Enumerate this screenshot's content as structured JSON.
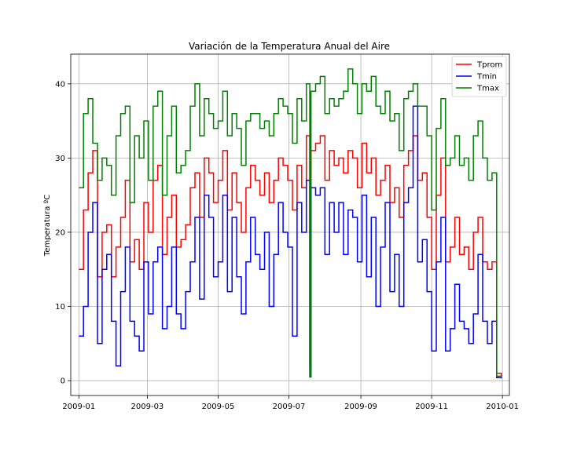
{
  "chart_data": {
    "type": "line",
    "title": "Variación de la Temperatura Anual del Aire",
    "xlabel": "",
    "ylabel": "Temperatura ºC",
    "x_range": [
      "2008-12-25",
      "2010-01-07"
    ],
    "ylim": [
      -2,
      44
    ],
    "grid": true,
    "legend_position": "top-right",
    "x_ticks": [
      "2009-01",
      "2009-03",
      "2009-05",
      "2009-07",
      "2009-09",
      "2009-11",
      "2010-01"
    ],
    "y_ticks": [
      0,
      10,
      20,
      30,
      40
    ],
    "x": [
      "2009-01-01",
      "2009-01-05",
      "2009-01-09",
      "2009-01-13",
      "2009-01-17",
      "2009-01-21",
      "2009-01-25",
      "2009-01-29",
      "2009-02-02",
      "2009-02-06",
      "2009-02-10",
      "2009-02-14",
      "2009-02-18",
      "2009-02-22",
      "2009-02-26",
      "2009-03-02",
      "2009-03-06",
      "2009-03-10",
      "2009-03-14",
      "2009-03-18",
      "2009-03-22",
      "2009-03-26",
      "2009-03-30",
      "2009-04-03",
      "2009-04-07",
      "2009-04-11",
      "2009-04-15",
      "2009-04-19",
      "2009-04-23",
      "2009-04-27",
      "2009-05-01",
      "2009-05-05",
      "2009-05-09",
      "2009-05-13",
      "2009-05-17",
      "2009-05-21",
      "2009-05-25",
      "2009-05-29",
      "2009-06-02",
      "2009-06-06",
      "2009-06-10",
      "2009-06-14",
      "2009-06-18",
      "2009-06-22",
      "2009-06-26",
      "2009-06-30",
      "2009-07-04",
      "2009-07-08",
      "2009-07-12",
      "2009-07-16",
      "2009-07-19",
      "2009-07-20",
      "2009-07-24",
      "2009-07-28",
      "2009-08-01",
      "2009-08-05",
      "2009-08-09",
      "2009-08-13",
      "2009-08-17",
      "2009-08-21",
      "2009-08-25",
      "2009-08-29",
      "2009-09-02",
      "2009-09-06",
      "2009-09-10",
      "2009-09-14",
      "2009-09-18",
      "2009-09-22",
      "2009-09-26",
      "2009-09-30",
      "2009-10-04",
      "2009-10-08",
      "2009-10-12",
      "2009-10-16",
      "2009-10-20",
      "2009-10-24",
      "2009-10-28",
      "2009-11-01",
      "2009-11-05",
      "2009-11-09",
      "2009-11-13",
      "2009-11-17",
      "2009-11-21",
      "2009-11-25",
      "2009-11-29",
      "2009-12-03",
      "2009-12-07",
      "2009-12-11",
      "2009-12-15",
      "2009-12-19",
      "2009-12-23",
      "2009-12-27",
      "2009-12-31"
    ],
    "series": [
      {
        "name": "Tprom",
        "color": "#ff0000",
        "values": [
          15,
          23,
          28,
          31,
          14,
          20,
          21,
          14,
          18,
          22,
          27,
          16,
          19,
          15,
          24,
          20,
          27,
          29,
          17,
          22,
          25,
          18,
          19,
          21,
          26,
          28,
          22,
          30,
          28,
          24,
          27,
          31,
          23,
          28,
          24,
          20,
          26,
          29,
          27,
          25,
          28,
          24,
          27,
          30,
          29,
          27,
          23,
          29,
          26,
          33,
          2,
          31,
          32,
          33,
          27,
          31,
          29,
          30,
          28,
          31,
          30,
          26,
          32,
          28,
          30,
          25,
          27,
          29,
          24,
          26,
          22,
          29,
          31,
          33,
          27,
          28,
          22,
          15,
          25,
          30,
          16,
          18,
          22,
          17,
          18,
          15,
          20,
          22,
          16,
          15,
          16,
          1,
          0.5
        ]
      },
      {
        "name": "Tmin",
        "color": "#0000ff",
        "values": [
          6,
          10,
          20,
          24,
          5,
          15,
          17,
          8,
          2,
          12,
          18,
          8,
          6,
          4,
          16,
          9,
          16,
          18,
          7,
          10,
          18,
          9,
          7,
          12,
          16,
          22,
          11,
          25,
          22,
          14,
          16,
          25,
          12,
          22,
          14,
          9,
          16,
          22,
          17,
          15,
          20,
          10,
          17,
          24,
          20,
          18,
          6,
          24,
          20,
          27,
          0.5,
          26,
          25,
          26,
          17,
          24,
          20,
          24,
          17,
          23,
          22,
          16,
          25,
          14,
          22,
          10,
          18,
          24,
          12,
          17,
          10,
          24,
          26,
          37,
          16,
          19,
          12,
          4,
          16,
          22,
          4,
          7,
          13,
          8,
          7,
          5,
          9,
          17,
          8,
          5,
          8,
          0.4,
          0.3
        ]
      },
      {
        "name": "Tmax",
        "color": "#008000",
        "values": [
          26,
          36,
          38,
          32,
          27,
          30,
          29,
          25,
          33,
          36,
          37,
          24,
          33,
          30,
          35,
          27,
          37,
          39,
          25,
          33,
          37,
          28,
          29,
          31,
          37,
          40,
          33,
          38,
          36,
          34,
          35,
          39,
          33,
          36,
          34,
          29,
          35,
          36,
          36,
          34,
          35,
          33,
          36,
          38,
          37,
          36,
          32,
          38,
          35,
          40,
          0.5,
          39,
          40,
          41,
          36,
          38,
          37,
          38,
          39,
          42,
          40,
          36,
          40,
          39,
          41,
          37,
          36,
          39,
          35,
          36,
          31,
          38,
          39,
          40,
          37,
          37,
          33,
          23,
          34,
          38,
          29,
          30,
          33,
          29,
          30,
          27,
          33,
          35,
          30,
          27,
          28,
          0.6,
          0.5
        ]
      }
    ]
  }
}
